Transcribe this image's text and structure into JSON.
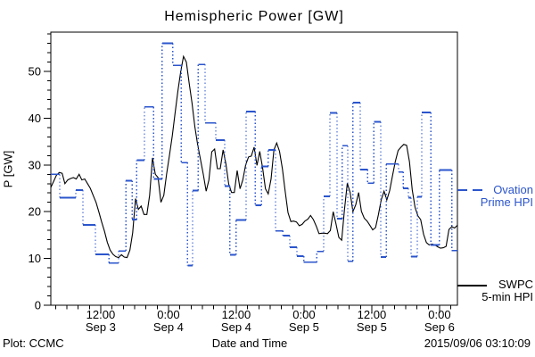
{
  "footer": {
    "left": "Plot: CCMC",
    "right": "2015/09/06 03:10:09"
  },
  "legend": {
    "ovation": {
      "label_line1": "Ovation",
      "label_line2": "Prime HPI",
      "color": "#2b55cc"
    },
    "swpc": {
      "label_line1": "SWPC",
      "label_line2": "5-min HPI",
      "color": "#000000"
    }
  },
  "chart_data": {
    "type": "line",
    "title": "Hemispheric Power [GW]",
    "xlabel": "Date and Time",
    "ylabel": "P [GW]",
    "ylim": [
      0,
      58.4
    ],
    "xlim_hours": [
      0,
      72
    ],
    "y_ticks": [
      0,
      10,
      20,
      30,
      40,
      50
    ],
    "y_minor_step": 2,
    "x_minor_step_hours": 2,
    "x_minor_offset_hours": 0.83,
    "x_ticks": [
      {
        "hours": 8.83,
        "time": "12:00",
        "date": "Sep 3"
      },
      {
        "hours": 20.83,
        "time": "0:00",
        "date": "Sep 4"
      },
      {
        "hours": 32.83,
        "time": "12:00",
        "date": "Sep 4"
      },
      {
        "hours": 44.83,
        "time": "0:00",
        "date": "Sep 5"
      },
      {
        "hours": 56.83,
        "time": "12:00",
        "date": "Sep 5"
      },
      {
        "hours": 68.83,
        "time": "0:00",
        "date": "Sep 6"
      }
    ],
    "axis_color": "#000000",
    "series": [
      {
        "name": "SWPC 5-min HPI",
        "color": "#000000",
        "style": "solid",
        "t0_hours": 0,
        "dt_hours": 0.5,
        "values": [
          25.2,
          26.5,
          27.8,
          28.4,
          28.2,
          26.0,
          26.8,
          27.1,
          27.3,
          27.0,
          28.0,
          26.8,
          27.0,
          26.0,
          25.0,
          23.5,
          22.0,
          20.0,
          17.8,
          15.8,
          13.5,
          11.8,
          10.9,
          10.4,
          10.2,
          10.8,
          10.3,
          10.2,
          11.8,
          15.5,
          22.8,
          20.5,
          21.2,
          19.4,
          19.4,
          23.5,
          31.5,
          28.0,
          27.3,
          22.0,
          23.5,
          28.0,
          32.0,
          36.2,
          41.0,
          45.8,
          50.0,
          53.2,
          52.0,
          47.4,
          43.3,
          38.2,
          34.3,
          31.2,
          28.0,
          24.4,
          26.8,
          32.8,
          33.4,
          29.2,
          29.2,
          33.2,
          30.3,
          25.9,
          24.1,
          24.1,
          28.8,
          24.9,
          26.8,
          30.0,
          31.7,
          31.9,
          33.8,
          29.9,
          32.9,
          29.4,
          24.9,
          23.8,
          27.0,
          33.2,
          34.7,
          32.9,
          29.2,
          24.4,
          19.8,
          17.9,
          18.0,
          17.8,
          17.0,
          17.3,
          18.0,
          18.4,
          19.2,
          18.3,
          16.9,
          15.3,
          15.4,
          15.4,
          15.3,
          16.0,
          20.0,
          17.4,
          14.5,
          13.9,
          20.4,
          26.1,
          24.1,
          20.0,
          21.5,
          24.1,
          20.1,
          18.6,
          18.0,
          17.1,
          16.1,
          16.6,
          19.3,
          22.5,
          24.4,
          22.5,
          24.5,
          27.7,
          30.7,
          33.1,
          33.8,
          34.4,
          34.2,
          30.7,
          24.7,
          20.9,
          19.1,
          18.3,
          15.2,
          13.4,
          12.9,
          13.1,
          12.9,
          12.5,
          12.2,
          12.3,
          12.6,
          16.2,
          16.8,
          16.5,
          17.1
        ]
      },
      {
        "name": "Ovation Prime HPI",
        "color": "#2b55cc",
        "style": "steps-dotted-connectors",
        "end_hours": 72,
        "steps": [
          [
            0,
            28
          ],
          [
            1.6,
            23
          ],
          [
            4.4,
            24.6
          ],
          [
            5.7,
            17.2
          ],
          [
            7.9,
            10.9
          ],
          [
            10.3,
            9
          ],
          [
            12,
            11.6
          ],
          [
            13.3,
            26.6
          ],
          [
            14.4,
            18.3
          ],
          [
            15.2,
            31
          ],
          [
            16.6,
            42.4
          ],
          [
            18.2,
            27
          ],
          [
            19.7,
            56
          ],
          [
            21.6,
            51.3
          ],
          [
            23.1,
            30.5
          ],
          [
            24.2,
            8.5
          ],
          [
            25.1,
            24.5
          ],
          [
            26.1,
            51.5
          ],
          [
            27.3,
            39
          ],
          [
            29.2,
            35.3
          ],
          [
            30.8,
            25.5
          ],
          [
            31.7,
            10.8
          ],
          [
            32.8,
            18.2
          ],
          [
            34.6,
            41.4
          ],
          [
            36.2,
            21.4
          ],
          [
            37.3,
            29.7
          ],
          [
            38.5,
            33.2
          ],
          [
            39.8,
            15.9
          ],
          [
            41.1,
            14.9
          ],
          [
            42.3,
            12.4
          ],
          [
            43.6,
            10.5
          ],
          [
            44.8,
            9.2
          ],
          [
            47.1,
            11.5
          ],
          [
            48.3,
            23.3
          ],
          [
            49.4,
            41.1
          ],
          [
            50.7,
            18.5
          ],
          [
            51.6,
            34.1
          ],
          [
            52.6,
            9.4
          ],
          [
            53.5,
            43.3
          ],
          [
            54.8,
            29
          ],
          [
            56.1,
            26.1
          ],
          [
            57.2,
            39.2
          ],
          [
            58.4,
            10.3
          ],
          [
            59.4,
            30.2
          ],
          [
            61.6,
            28.5
          ],
          [
            62.4,
            25
          ],
          [
            63.3,
            23
          ],
          [
            63.8,
            10.4
          ],
          [
            64.9,
            23.2
          ],
          [
            65.7,
            41.2
          ],
          [
            67.3,
            12.9
          ],
          [
            68.8,
            28.9
          ],
          [
            71,
            11.7
          ]
        ]
      }
    ]
  }
}
